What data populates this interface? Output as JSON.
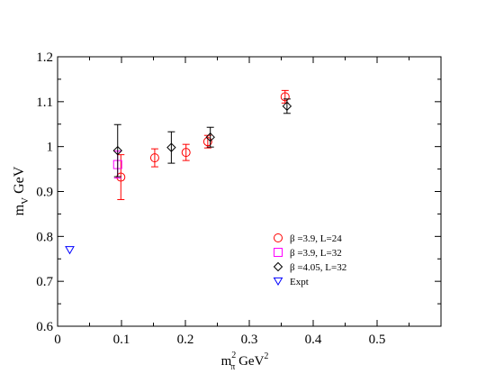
{
  "chart_data": {
    "type": "scatter",
    "title": "",
    "xlabel": {
      "main": "m",
      "sub": "π",
      "sup": "2",
      "unit": " GeV",
      "unit_sup": "2"
    },
    "ylabel": {
      "main": "m",
      "sub": "V",
      "unit": " GeV"
    },
    "xlim": [
      0,
      0.6
    ],
    "ylim": [
      0.6,
      1.2
    ],
    "x_ticks": [
      {
        "value": 0,
        "label": "0"
      },
      {
        "value": 0.1,
        "label": "0.1"
      },
      {
        "value": 0.2,
        "label": "0.2"
      },
      {
        "value": 0.3,
        "label": "0.3"
      },
      {
        "value": 0.4,
        "label": "0.4"
      },
      {
        "value": 0.5,
        "label": "0.5"
      }
    ],
    "y_ticks": [
      {
        "value": 0.6,
        "label": "0.6"
      },
      {
        "value": 0.7,
        "label": "0.7"
      },
      {
        "value": 0.8,
        "label": "0.8"
      },
      {
        "value": 0.9,
        "label": "0.9"
      },
      {
        "value": 1.0,
        "label": "1"
      },
      {
        "value": 1.1,
        "label": "1.1"
      },
      {
        "value": 1.2,
        "label": "1.2"
      }
    ],
    "grid": false,
    "legend_position": "lower-right",
    "series": [
      {
        "name": "β =3.9,   L=24",
        "marker": "circle",
        "color": "#ff0000",
        "points": [
          {
            "x": 0.099,
            "y": 0.932,
            "err": 0.05
          },
          {
            "x": 0.152,
            "y": 0.975,
            "err": 0.02
          },
          {
            "x": 0.201,
            "y": 0.987,
            "err": 0.018
          },
          {
            "x": 0.235,
            "y": 1.011,
            "err": 0.014
          },
          {
            "x": 0.356,
            "y": 1.111,
            "err": 0.014
          }
        ]
      },
      {
        "name": "β =3.9,   L=32",
        "marker": "square",
        "color": "#ff00ff",
        "points": [
          {
            "x": 0.094,
            "y": 0.96,
            "err": 0.03
          }
        ]
      },
      {
        "name": "β =4.05, L=32",
        "marker": "diamond",
        "color": "#000000",
        "points": [
          {
            "x": 0.094,
            "y": 0.991,
            "err": 0.058
          },
          {
            "x": 0.178,
            "y": 0.998,
            "err": 0.035
          },
          {
            "x": 0.239,
            "y": 1.021,
            "err": 0.022
          },
          {
            "x": 0.359,
            "y": 1.09,
            "err": 0.016
          }
        ]
      },
      {
        "name": "Expt",
        "marker": "triangle-down",
        "color": "#0000ff",
        "points": [
          {
            "x": 0.019,
            "y": 0.77,
            "err": 0
          }
        ]
      }
    ]
  }
}
